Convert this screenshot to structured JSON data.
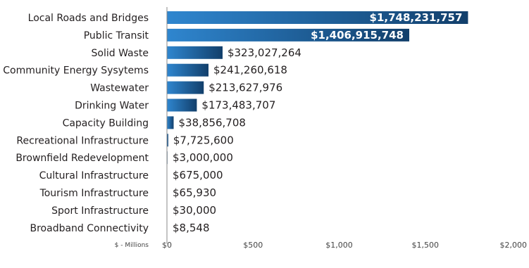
{
  "chart_data": {
    "type": "bar",
    "orientation": "horizontal",
    "categories": [
      "Local Roads and Bridges",
      "Public Transit",
      "Solid Waste",
      "Community Energy Sysytems",
      "Wastewater",
      "Drinking Water",
      "Capacity Building",
      "Recreational Infrastructure",
      "Brownfield Redevelopment",
      "Cultural Infrastructure",
      "Tourism Infrastructure",
      "Sport Infrastructure",
      "Broadband Connectivity"
    ],
    "values": [
      1748231757,
      1406915748,
      323027264,
      241260618,
      213627976,
      173483707,
      38856708,
      7725600,
      3000000,
      675000,
      65930,
      30000,
      8548
    ],
    "value_labels": [
      "$1,748,231,757",
      "$1,406,915,748",
      "$323,027,264",
      "$241,260,618",
      "$213,627,976",
      "$173,483,707",
      "$38,856,708",
      "$7,725,600",
      "$3,000,000",
      "$675,000",
      "$65,930",
      "$30,000",
      "$8,548"
    ],
    "xlabel": "$ - Millions",
    "xlim": [
      0,
      2000
    ],
    "x_ticks": [
      0,
      500,
      1000,
      1500,
      2000
    ],
    "x_tick_labels": [
      "$0",
      "$500",
      "$1,000",
      "$1,500",
      "$2,000"
    ],
    "grid": false,
    "bar_color": "#1f69b0",
    "bar_color_dark": "#123f6b"
  }
}
